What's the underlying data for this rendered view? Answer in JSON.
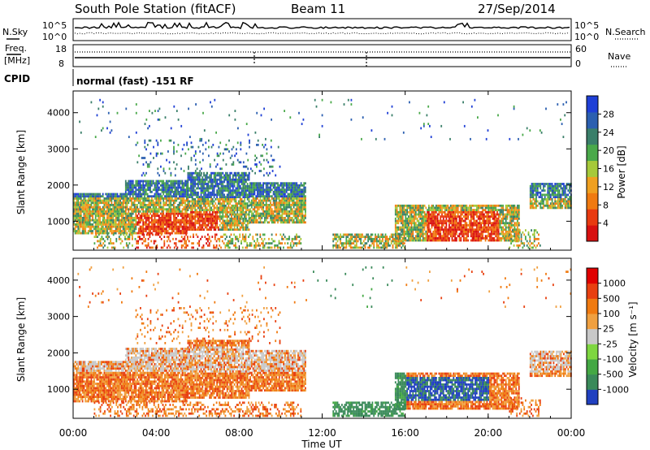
{
  "header": {
    "station": "South Pole Station (fitACF)",
    "beam": "Beam 11",
    "date": "27/Sep/2014"
  },
  "summary_panel": {
    "nsky_label": "N.Sky",
    "nsearch_label": "N.Search",
    "noise_ticks": [
      "10^5",
      "10^0"
    ],
    "freq_label_1": "Freq.",
    "freq_label_2": "[MHz]",
    "freq_ticks": [
      "18",
      "8"
    ],
    "nave_label": "Nave",
    "nave_ticks": [
      "60",
      "0"
    ],
    "cpid_label": "CPID",
    "cpid_text": "normal (fast) -151 RF"
  },
  "colors": {
    "power_scale": [
      "#1f3fd6",
      "#2b5fb0",
      "#3a7f6a",
      "#4aa94a",
      "#a6c93a",
      "#f0a020",
      "#f07a10",
      "#e83a10",
      "#d81010"
    ],
    "velocity_scale": [
      "#2040c0",
      "#3a8a5a",
      "#44a844",
      "#7ed640",
      "#c8c8c8",
      "#f0a040",
      "#f07a10",
      "#e84010",
      "#e00000"
    ]
  },
  "chart_data": [
    {
      "type": "heatmap",
      "ylabel": "Slant Range [km]",
      "xlabel": "",
      "yticks": [
        "1000",
        "2000",
        "3000",
        "4000"
      ],
      "xticks": [
        "00:00",
        "04:00",
        "08:00",
        "12:00",
        "16:00",
        "20:00",
        "00:00"
      ],
      "xlim": [
        0,
        24
      ],
      "ylim": [
        200,
        4600
      ],
      "colorbar_label": "Power [dB]",
      "colorbar_ticks": [
        "28",
        "24",
        "20",
        "16",
        "12",
        "8",
        "4"
      ],
      "colorbar_range": [
        0,
        32
      ]
    },
    {
      "type": "heatmap",
      "ylabel": "Slant Range [km]",
      "xlabel": "Time UT",
      "yticks": [
        "1000",
        "2000",
        "3000",
        "4000"
      ],
      "xticks": [
        "00:00",
        "04:00",
        "08:00",
        "12:00",
        "16:00",
        "20:00",
        "00:00"
      ],
      "xlim": [
        0,
        24
      ],
      "ylim": [
        200,
        4600
      ],
      "colorbar_label": "Velocity [m s⁻¹]",
      "colorbar_ticks": [
        "1000",
        "500",
        "100",
        "25",
        "-25",
        "-100",
        "-500",
        "-1000"
      ]
    }
  ]
}
